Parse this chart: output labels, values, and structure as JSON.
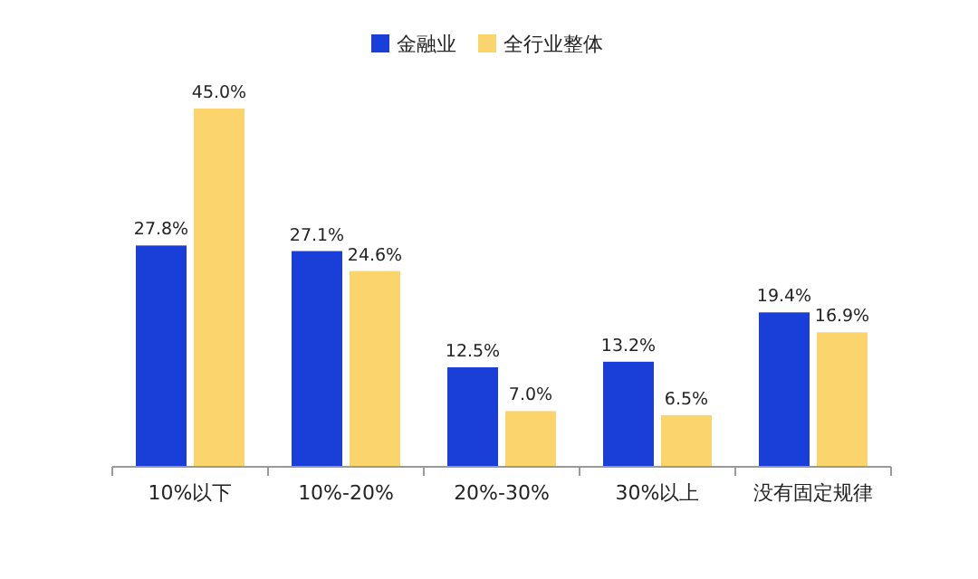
{
  "chart_data": {
    "type": "bar",
    "categories": [
      "10%以下",
      "10%-20%",
      "20%-30%",
      "30%以上",
      "没有固定规律"
    ],
    "series": [
      {
        "name": "金融业",
        "color": "#1a3fd8",
        "values": [
          27.8,
          27.1,
          12.5,
          13.2,
          19.4
        ],
        "value_labels": [
          "27.8%",
          "27.1%",
          "12.5%",
          "13.2%",
          "19.4%"
        ]
      },
      {
        "name": "全行业整体",
        "color": "#fbd56c",
        "values": [
          45.0,
          24.6,
          7.0,
          6.5,
          16.9
        ],
        "value_labels": [
          "45.0%",
          "24.6%",
          "7.0%",
          "6.5%",
          "16.9%"
        ]
      }
    ],
    "legend": "top"
  }
}
